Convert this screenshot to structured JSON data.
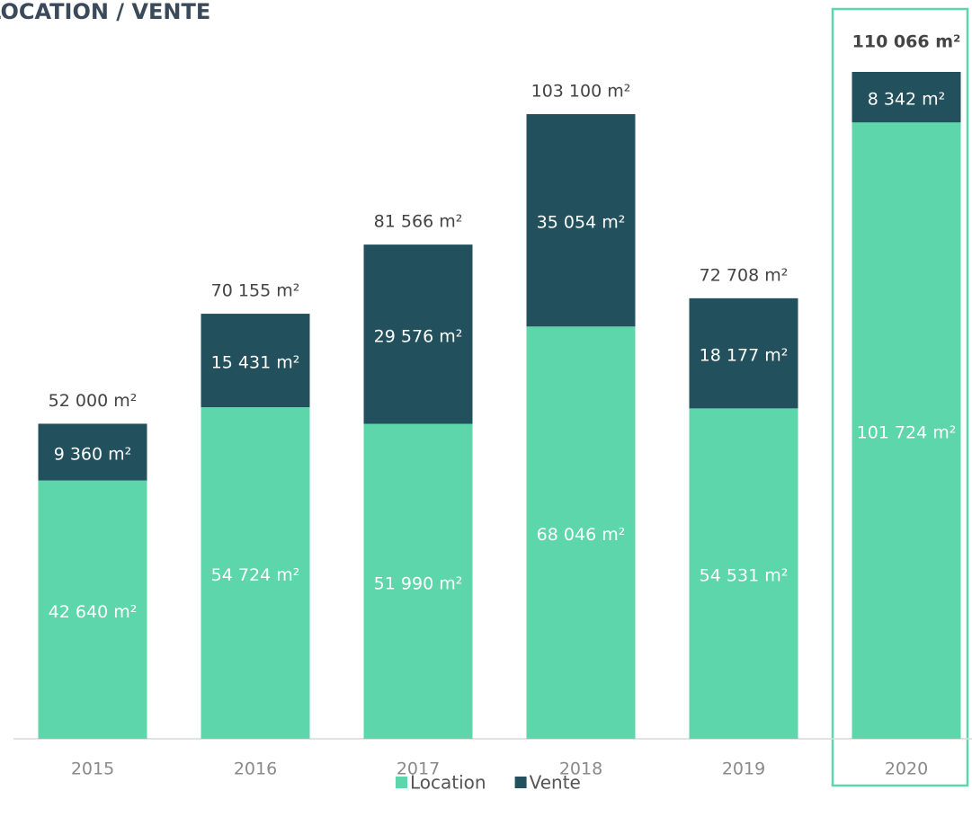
{
  "chart_data": {
    "type": "stacked_bar",
    "title": "LOCATION / VENTE",
    "categories": [
      "2015",
      "2016",
      "2017",
      "2018",
      "2019",
      "2020"
    ],
    "series": [
      {
        "name": "Location",
        "color": "#5cd6aa",
        "values": [
          42640,
          54724,
          51990,
          68046,
          54531,
          101724
        ],
        "value_labels": [
          "42 640 m²",
          "54 724 m²",
          "51 990 m²",
          "68 046 m²",
          "54 531 m²",
          "101 724 m²"
        ]
      },
      {
        "name": "Vente",
        "color": "#22505c",
        "values": [
          9360,
          15431,
          29576,
          35054,
          18177,
          8342
        ],
        "value_labels": [
          "9 360 m²",
          "15 431 m²",
          "29 576 m²",
          "35 054 m²",
          "18 177 m²",
          "8 342 m²"
        ]
      }
    ],
    "totals": [
      52000,
      70155,
      81566,
      103100,
      72708,
      110066
    ],
    "total_labels": [
      "52 000 m²",
      "70 155 m²",
      "81 566 m²",
      "103 100 m²",
      "72 708 m²",
      "110 066 m²"
    ],
    "legend": "bottom"
  }
}
